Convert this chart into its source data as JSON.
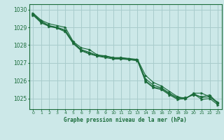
{
  "title": "Graphe pression niveau de la mer (hPa)",
  "bg_color": "#cce8e8",
  "grid_color": "#a8cccc",
  "line_color": "#1a6b3a",
  "xlim": [
    -0.5,
    23.5
  ],
  "ylim": [
    1024.4,
    1030.3
  ],
  "yticks": [
    1025,
    1026,
    1027,
    1028,
    1029,
    1030
  ],
  "xticks": [
    0,
    1,
    2,
    3,
    4,
    5,
    6,
    7,
    8,
    9,
    10,
    11,
    12,
    13,
    14,
    15,
    16,
    17,
    18,
    19,
    20,
    21,
    22,
    23
  ],
  "series": [
    [
      1029.8,
      1029.4,
      1029.2,
      1029.1,
      1029.0,
      1028.2,
      1027.85,
      1027.75,
      1027.45,
      1027.4,
      1027.3,
      1027.3,
      1027.25,
      1027.2,
      1026.3,
      1025.9,
      1025.7,
      1025.4,
      1025.1,
      1025.0,
      1025.3,
      1025.3,
      1025.1,
      1024.8
    ],
    [
      1029.75,
      1029.35,
      1029.1,
      1029.0,
      1028.85,
      1028.15,
      1027.75,
      1027.6,
      1027.42,
      1027.38,
      1027.28,
      1027.28,
      1027.22,
      1027.18,
      1026.1,
      1025.75,
      1025.6,
      1025.3,
      1025.05,
      1025.05,
      1025.2,
      1025.1,
      1025.2,
      1024.75
    ],
    [
      1029.72,
      1029.3,
      1029.08,
      1028.98,
      1028.8,
      1028.12,
      1027.72,
      1027.55,
      1027.4,
      1027.35,
      1027.26,
      1027.25,
      1027.2,
      1027.15,
      1026.0,
      1025.65,
      1025.55,
      1025.25,
      1025.0,
      1025.0,
      1025.28,
      1025.05,
      1025.1,
      1024.72
    ],
    [
      1029.68,
      1029.25,
      1029.05,
      1028.95,
      1028.75,
      1028.08,
      1027.68,
      1027.5,
      1027.38,
      1027.3,
      1027.22,
      1027.22,
      1027.18,
      1027.12,
      1025.95,
      1025.6,
      1025.5,
      1025.2,
      1024.95,
      1025.0,
      1025.25,
      1024.95,
      1025.0,
      1024.65
    ]
  ]
}
